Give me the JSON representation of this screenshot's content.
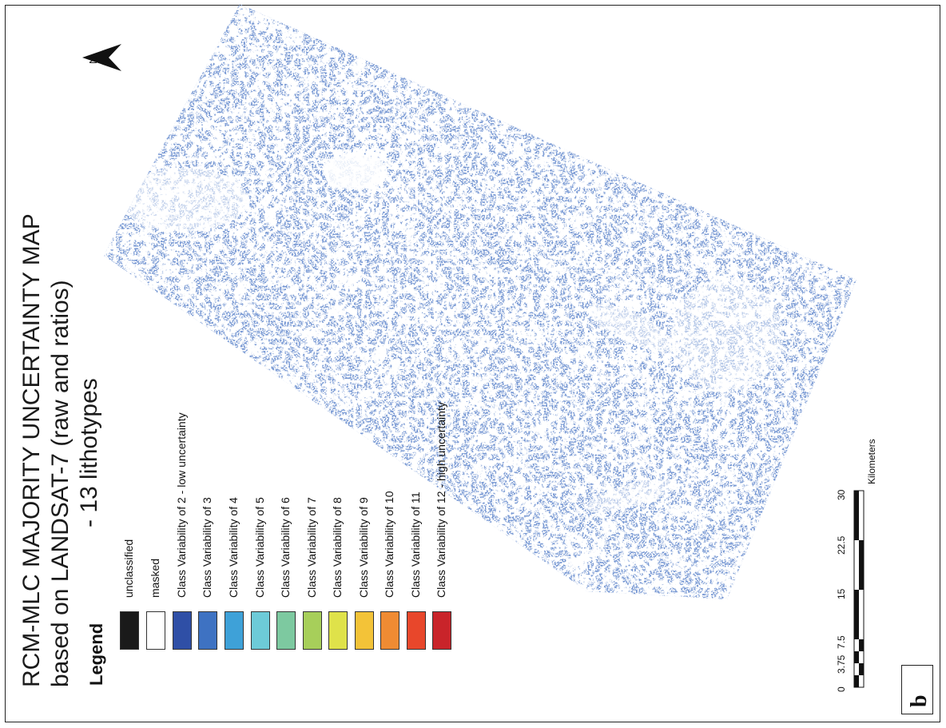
{
  "title": {
    "line1": "RCM-MLC MAJORITY UNCERTAINTY MAP",
    "line2": "based on LANDSAT-7 (raw and ratios)",
    "line3": "- 13 lithotypes"
  },
  "north_arrow": {
    "label": "N"
  },
  "legend": {
    "heading": "Legend",
    "items": [
      {
        "label": "unclassified",
        "color": "#1a1a1a"
      },
      {
        "label": "masked",
        "color": "#ffffff"
      },
      {
        "label": "Class Variability of 2 - low uncertainty",
        "color": "#2f4fa6"
      },
      {
        "label": "Class Variability of 3",
        "color": "#3e72c2"
      },
      {
        "label": "Class Variability of 4",
        "color": "#3ea1d8"
      },
      {
        "label": "Class Variability of 5",
        "color": "#6dcbd8"
      },
      {
        "label": "Class Variability of 6",
        "color": "#7dc9a0"
      },
      {
        "label": "Class Variability of 7",
        "color": "#a7cf5a"
      },
      {
        "label": "Class Variability of 8",
        "color": "#dfe24a"
      },
      {
        "label": "Class Variability of 9",
        "color": "#f3c338"
      },
      {
        "label": "Class Variability of 10",
        "color": "#ef8b33"
      },
      {
        "label": "Class Variability of 11",
        "color": "#e8472b"
      },
      {
        "label": "Class Variability of 12 - high uncertainty",
        "color": "#c9242a"
      }
    ]
  },
  "scale_bar": {
    "unit": "Kilometers",
    "ticks": [
      "0",
      "3.75",
      "7.5",
      "15",
      "22.5",
      "30"
    ]
  },
  "panel_label": "b",
  "colors": {
    "raster_dominant": "#2f4fa6",
    "frame": "#222222"
  }
}
